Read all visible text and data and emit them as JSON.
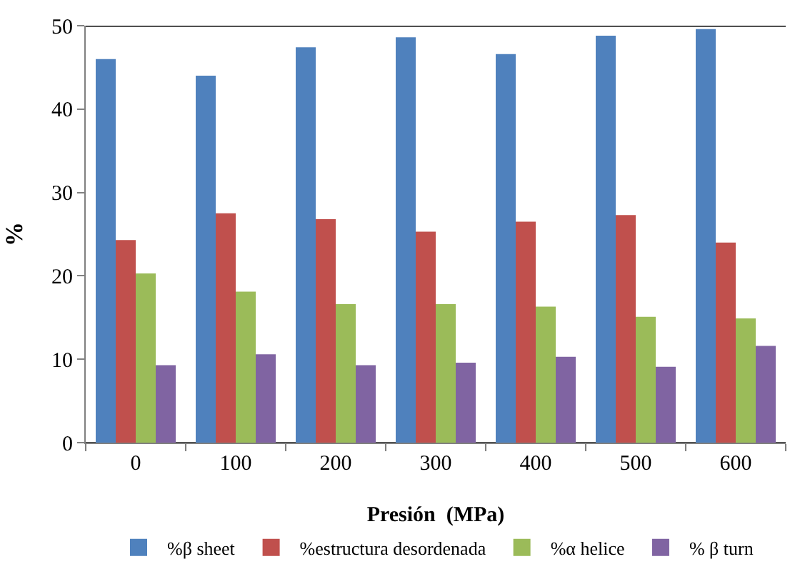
{
  "chart_data": {
    "type": "bar",
    "xlabel": "Presión  (MPa)",
    "ylabel": "%",
    "categories": [
      "0",
      "100",
      "200",
      "300",
      "400",
      "500",
      "600"
    ],
    "series": [
      {
        "name": "%β sheet",
        "color": "#4f81bd",
        "values": [
          46,
          44,
          47.4,
          48.6,
          46.6,
          48.8,
          49.6
        ]
      },
      {
        "name": "%estructura desordenada",
        "color": "#c0504d",
        "values": [
          24.3,
          27.5,
          26.8,
          25.3,
          26.5,
          27.3,
          24.0
        ]
      },
      {
        "name": "%α helice",
        "color": "#9bbb59",
        "values": [
          20.3,
          18.1,
          16.6,
          16.6,
          16.3,
          15.1,
          14.9
        ]
      },
      {
        "name": "% β turn",
        "color": "#8064a2",
        "values": [
          9.3,
          10.6,
          9.3,
          9.6,
          10.3,
          9.1,
          11.6
        ]
      }
    ],
    "ylim": [
      0,
      50
    ],
    "yticks": [
      0,
      10,
      20,
      30,
      40,
      50
    ],
    "grid": false,
    "legend": "bottom"
  }
}
